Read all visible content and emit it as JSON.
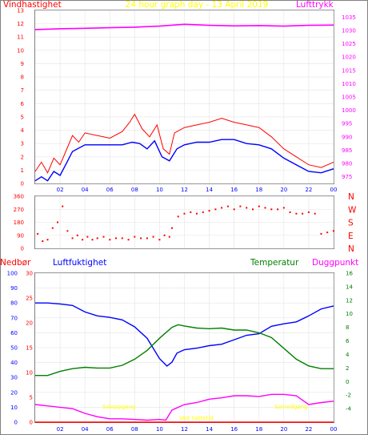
{
  "title": "24 hour graph day - 13 April 2019",
  "colors": {
    "wind": "#ff0000",
    "gust": "#ff0000",
    "avg": "#0000ff",
    "pressure": "#ff00ff",
    "dir": "#ff0000",
    "humidity": "#0000ff",
    "temperature": "#008000",
    "dewpoint": "#ff00ff",
    "rain": "#ff0000",
    "sun": "#ffff00"
  },
  "chart_data": [
    {
      "type": "line",
      "x_ticks": [
        "02",
        "04",
        "06",
        "08",
        "10",
        "12",
        "14",
        "16",
        "18",
        "20",
        "22",
        "00"
      ],
      "y_left_label": "Vindhastighet",
      "y_left_ticks": [
        "0",
        "1",
        "2",
        "3",
        "4",
        "5",
        "6",
        "7",
        "8",
        "9",
        "10",
        "11",
        "12",
        "13"
      ],
      "ylim_left": [
        0,
        13
      ],
      "y_right_label": "Lufttrykk",
      "y_right_ticks": [
        "975",
        "980",
        "985",
        "990",
        "995",
        "1000",
        "1005",
        "1010",
        "1015",
        "1020",
        "1025",
        "1030",
        "1035"
      ],
      "ylim_right": [
        972.5,
        1037.5
      ],
      "series": [
        {
          "axis": "right",
          "points": [
            [
              0,
              1030.3
            ],
            [
              2,
              1030.6
            ],
            [
              4,
              1030.8
            ],
            [
              6,
              1031.0
            ],
            [
              8,
              1031.2
            ],
            [
              10,
              1031.6
            ],
            [
              12,
              1032.3
            ],
            [
              14,
              1031.9
            ],
            [
              16,
              1031.7
            ],
            [
              18,
              1031.8
            ],
            [
              20,
              1031.6
            ],
            [
              22,
              1031.9
            ],
            [
              24,
              1032.0
            ]
          ]
        },
        {
          "axis": "left",
          "points": [
            [
              0,
              0.9
            ],
            [
              0.5,
              1.6
            ],
            [
              1,
              0.8
            ],
            [
              1.5,
              1.9
            ],
            [
              2,
              1.4
            ],
            [
              2.5,
              2.5
            ],
            [
              3,
              3.6
            ],
            [
              3.5,
              3.1
            ],
            [
              4,
              3.8
            ],
            [
              5,
              3.6
            ],
            [
              6,
              3.4
            ],
            [
              7,
              3.9
            ],
            [
              7.6,
              4.6
            ],
            [
              8,
              5.2
            ],
            [
              8.6,
              4.1
            ],
            [
              9.2,
              3.5
            ],
            [
              9.8,
              4.4
            ],
            [
              10.3,
              2.6
            ],
            [
              10.8,
              2.2
            ],
            [
              11.2,
              3.8
            ],
            [
              12,
              4.2
            ],
            [
              13,
              4.4
            ],
            [
              14,
              4.6
            ],
            [
              15,
              4.9
            ],
            [
              16,
              4.6
            ],
            [
              17,
              4.4
            ],
            [
              18,
              4.2
            ],
            [
              19,
              3.5
            ],
            [
              20,
              2.6
            ],
            [
              21,
              2.0
            ],
            [
              22,
              1.4
            ],
            [
              23,
              1.2
            ],
            [
              24,
              1.6
            ]
          ]
        },
        {
          "axis": "left",
          "points": [
            [
              0,
              0.2
            ],
            [
              0.5,
              0.5
            ],
            [
              1,
              0.2
            ],
            [
              1.5,
              0.9
            ],
            [
              2,
              0.6
            ],
            [
              2.5,
              1.5
            ],
            [
              3,
              2.4
            ],
            [
              4,
              2.9
            ],
            [
              5,
              2.9
            ],
            [
              6,
              2.9
            ],
            [
              7,
              2.9
            ],
            [
              7.8,
              3.1
            ],
            [
              8.4,
              3.0
            ],
            [
              9,
              2.6
            ],
            [
              9.6,
              3.2
            ],
            [
              10.2,
              2.0
            ],
            [
              10.8,
              1.7
            ],
            [
              11.4,
              2.6
            ],
            [
              12,
              2.9
            ],
            [
              13,
              3.1
            ],
            [
              14,
              3.1
            ],
            [
              15,
              3.3
            ],
            [
              16,
              3.3
            ],
            [
              17,
              3.0
            ],
            [
              18,
              2.9
            ],
            [
              19,
              2.6
            ],
            [
              20,
              1.9
            ],
            [
              21,
              1.4
            ],
            [
              22,
              0.9
            ],
            [
              23,
              0.8
            ],
            [
              24,
              1.1
            ]
          ]
        }
      ]
    },
    {
      "type": "scatter",
      "x_ticks": [
        "02",
        "04",
        "06",
        "08",
        "10",
        "12",
        "14",
        "16",
        "18",
        "20",
        "22",
        "00"
      ],
      "y_left_ticks": [
        "0",
        "90",
        "180",
        "270",
        "360"
      ],
      "ylim": [
        0,
        360
      ],
      "y_right_ticks": [
        "N",
        "W",
        "S",
        "E",
        "N"
      ],
      "points": [
        [
          0.2,
          100
        ],
        [
          0.6,
          50
        ],
        [
          1,
          60
        ],
        [
          1.4,
          140
        ],
        [
          1.8,
          180
        ],
        [
          2.2,
          290
        ],
        [
          2.6,
          120
        ],
        [
          3,
          70
        ],
        [
          3.4,
          90
        ],
        [
          3.8,
          60
        ],
        [
          4.2,
          80
        ],
        [
          4.6,
          60
        ],
        [
          5,
          70
        ],
        [
          5.5,
          80
        ],
        [
          6,
          60
        ],
        [
          6.5,
          70
        ],
        [
          7,
          70
        ],
        [
          7.5,
          60
        ],
        [
          8,
          80
        ],
        [
          8.5,
          70
        ],
        [
          9,
          70
        ],
        [
          9.5,
          80
        ],
        [
          10,
          60
        ],
        [
          10.4,
          90
        ],
        [
          10.8,
          80
        ],
        [
          11,
          140
        ],
        [
          11.5,
          220
        ],
        [
          12,
          240
        ],
        [
          12.5,
          250
        ],
        [
          13,
          240
        ],
        [
          13.5,
          250
        ],
        [
          14,
          260
        ],
        [
          14.5,
          270
        ],
        [
          15,
          280
        ],
        [
          15.5,
          290
        ],
        [
          16,
          270
        ],
        [
          16.5,
          290
        ],
        [
          17,
          280
        ],
        [
          17.5,
          270
        ],
        [
          18,
          290
        ],
        [
          18.5,
          280
        ],
        [
          19,
          270
        ],
        [
          19.5,
          270
        ],
        [
          20,
          280
        ],
        [
          20.5,
          250
        ],
        [
          21,
          240
        ],
        [
          21.5,
          240
        ],
        [
          22,
          250
        ],
        [
          22.5,
          240
        ],
        [
          23,
          100
        ],
        [
          23.5,
          110
        ],
        [
          24,
          120
        ]
      ]
    },
    {
      "type": "line",
      "x_ticks": [
        "02",
        "04",
        "06",
        "08",
        "10",
        "12",
        "14",
        "16",
        "18",
        "20",
        "22",
        "00"
      ],
      "ylim_rain": [
        0,
        100
      ],
      "y_rain_ticks": [
        "0",
        "10",
        "20",
        "30",
        "40",
        "50",
        "60",
        "70",
        "80",
        "90",
        "100"
      ],
      "ylim_humidity": [
        0,
        30
      ],
      "y_humidity_ticks": [
        "0",
        "5",
        "10",
        "15",
        "20",
        "25",
        "30"
      ],
      "ylim_temperature": [
        -6,
        16
      ],
      "y_temperature_ticks": [
        "-4",
        "-2",
        "0",
        "2",
        "4",
        "6",
        "8",
        "10",
        "12",
        "14",
        "16"
      ],
      "labels": {
        "rain": "Nedbør",
        "humidity": "Luftfuktighet",
        "temperature": "Temperatur",
        "dewpoint": "Duggpunkt"
      },
      "annotations": {
        "sunrise": "Soloppgang",
        "sunset": "Solnedgang",
        "sun_extra": "Ved nattetid"
      },
      "series": [
        {
          "name": "Luftfuktighet",
          "axis": "humidity",
          "points": [
            [
              0,
              24
            ],
            [
              1,
              24
            ],
            [
              2,
              23.8
            ],
            [
              3,
              23.5
            ],
            [
              4,
              22.2
            ],
            [
              5,
              21.4
            ],
            [
              6,
              21.1
            ],
            [
              7,
              20.6
            ],
            [
              8,
              19.2
            ],
            [
              9,
              16.9
            ],
            [
              10,
              12.8
            ],
            [
              10.6,
              11.3
            ],
            [
              11,
              12.1
            ],
            [
              11.4,
              13.9
            ],
            [
              12,
              14.6
            ],
            [
              13,
              14.9
            ],
            [
              14,
              15.4
            ],
            [
              15,
              15.7
            ],
            [
              16,
              16.6
            ],
            [
              17,
              17.5
            ],
            [
              18,
              17.8
            ],
            [
              19,
              19.3
            ],
            [
              20,
              19.8
            ],
            [
              21,
              20.2
            ],
            [
              22,
              21.4
            ],
            [
              23,
              22.8
            ],
            [
              24,
              23.4
            ]
          ]
        },
        {
          "name": "Temperatur",
          "axis": "temperature",
          "points": [
            [
              0,
              0.9
            ],
            [
              1,
              0.9
            ],
            [
              2,
              1.5
            ],
            [
              3,
              1.9
            ],
            [
              4,
              2.1
            ],
            [
              5,
              2.0
            ],
            [
              6,
              2.0
            ],
            [
              7,
              2.4
            ],
            [
              8,
              3.3
            ],
            [
              9,
              4.6
            ],
            [
              10,
              6.4
            ],
            [
              11,
              8.0
            ],
            [
              11.5,
              8.4
            ],
            [
              12,
              8.2
            ],
            [
              13,
              7.9
            ],
            [
              14,
              7.8
            ],
            [
              15,
              7.9
            ],
            [
              16,
              7.6
            ],
            [
              17,
              7.6
            ],
            [
              18,
              7.2
            ],
            [
              19,
              6.5
            ],
            [
              20,
              4.9
            ],
            [
              21,
              3.3
            ],
            [
              22,
              2.3
            ],
            [
              23,
              1.9
            ],
            [
              24,
              1.9
            ]
          ]
        },
        {
          "name": "Duggpunkt",
          "axis": "temperature",
          "points": [
            [
              0,
              -3.4
            ],
            [
              1,
              -3.6
            ],
            [
              2,
              -3.8
            ],
            [
              3,
              -4.0
            ],
            [
              4,
              -4.7
            ],
            [
              5,
              -5.2
            ],
            [
              6,
              -5.5
            ],
            [
              7,
              -5.5
            ],
            [
              8,
              -5.6
            ],
            [
              9,
              -5.7
            ],
            [
              10,
              -5.6
            ],
            [
              10.5,
              -5.7
            ],
            [
              11,
              -4.2
            ],
            [
              12,
              -3.4
            ],
            [
              13,
              -3.1
            ],
            [
              14,
              -2.6
            ],
            [
              15,
              -2.4
            ],
            [
              16,
              -2.1
            ],
            [
              17,
              -2.1
            ],
            [
              18,
              -2.2
            ],
            [
              19,
              -1.9
            ],
            [
              20,
              -1.9
            ],
            [
              21,
              -2.1
            ],
            [
              22,
              -3.4
            ],
            [
              23,
              -3.1
            ],
            [
              24,
              -2.9
            ]
          ]
        },
        {
          "name": "Nedbør",
          "axis": "rain",
          "points": [
            [
              0,
              0
            ],
            [
              24,
              0
            ]
          ]
        }
      ]
    }
  ]
}
